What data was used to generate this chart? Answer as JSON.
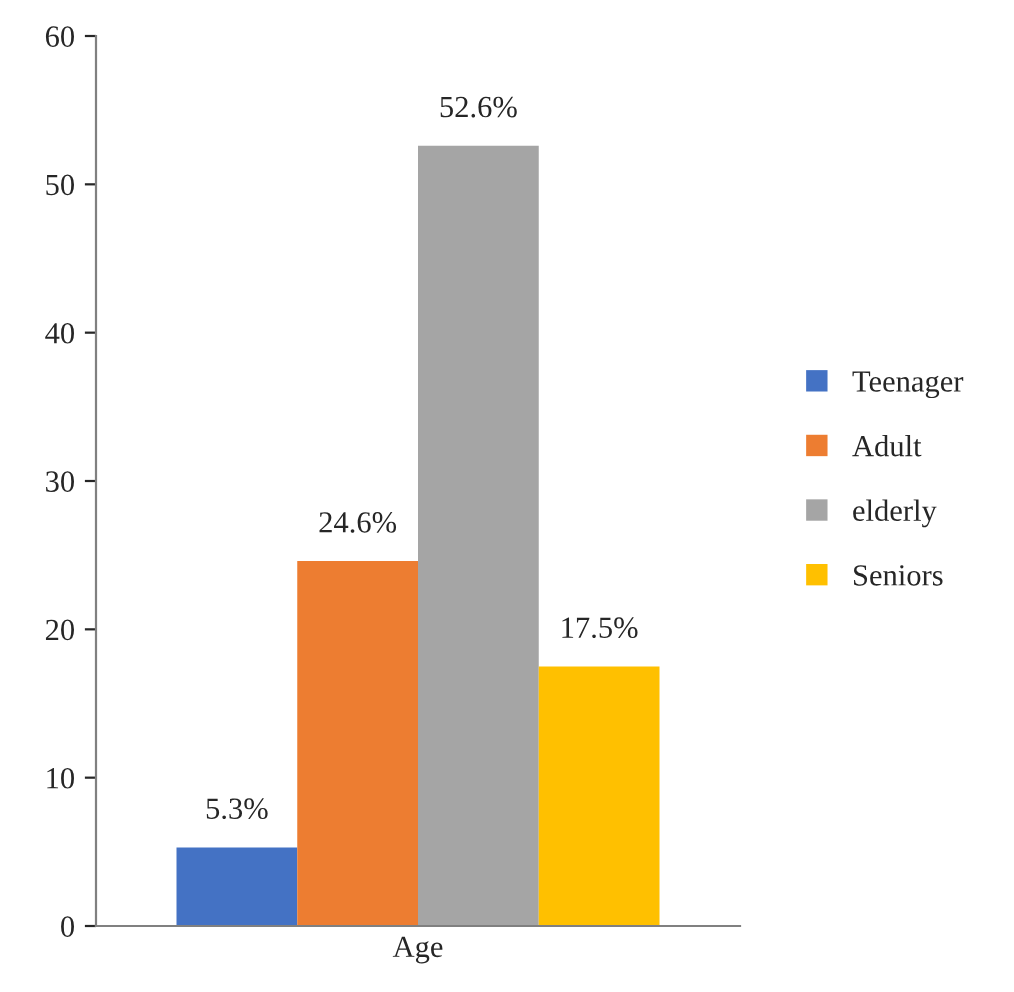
{
  "chart_data": {
    "type": "bar",
    "categories": [
      "Age"
    ],
    "series": [
      {
        "name": "Teenager",
        "color": "#4472c4",
        "values": [
          5.3
        ],
        "value_labels": [
          "5.3%"
        ]
      },
      {
        "name": "Adult",
        "color": "#ed7d31",
        "values": [
          24.6
        ],
        "value_labels": [
          "24.6%"
        ]
      },
      {
        "name": "elderly",
        "color": "#a5a5a5",
        "values": [
          52.6
        ],
        "value_labels": [
          "52.6%"
        ]
      },
      {
        "name": "Seniors",
        "color": "#ffc000",
        "values": [
          17.5
        ],
        "value_labels": [
          "17.5%"
        ]
      }
    ],
    "ylim": [
      0,
      60
    ],
    "yticks": [
      0,
      10,
      20,
      30,
      40,
      50,
      60
    ],
    "grid": false,
    "legend": "right"
  }
}
